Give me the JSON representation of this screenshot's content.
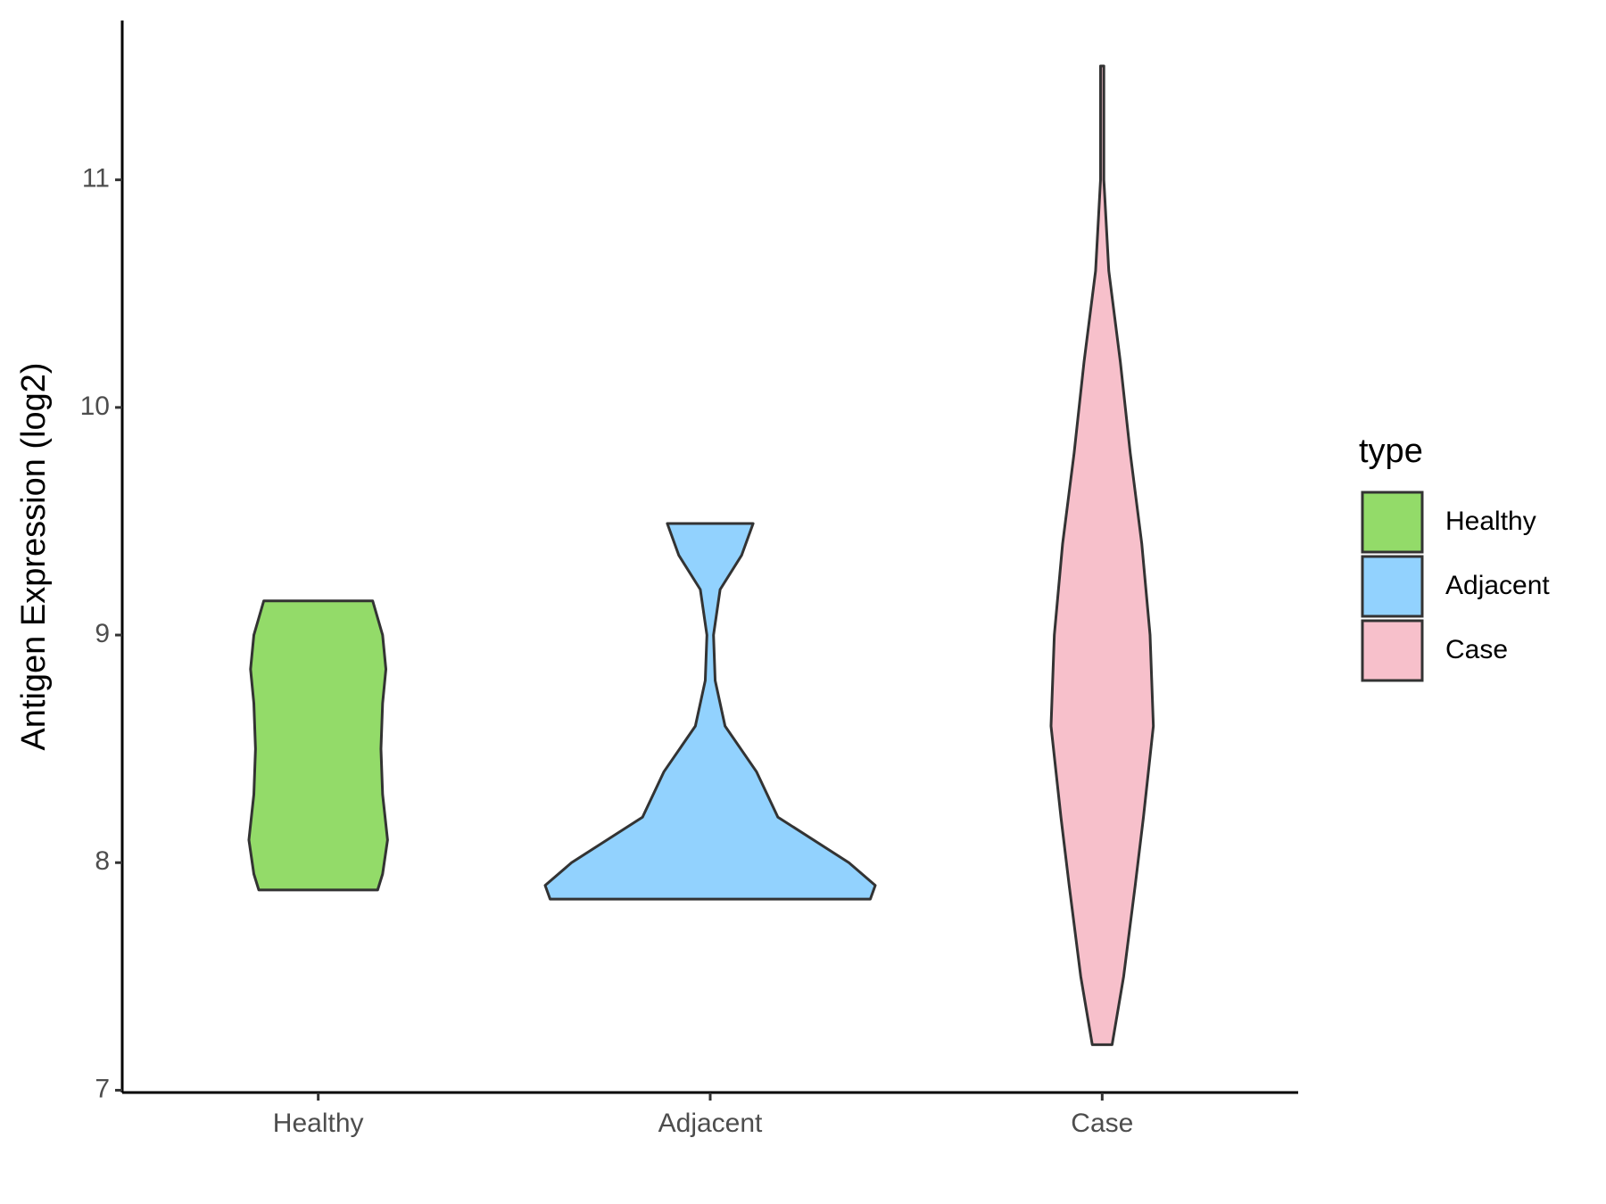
{
  "chart_data": {
    "type": "violin",
    "y_label": "Antigen Expression (log2)",
    "legend_title": "type",
    "categories": [
      "Healthy",
      "Adjacent",
      "Case"
    ],
    "ylim": [
      6.99,
      11.7
    ],
    "yticks": [
      7,
      8,
      9,
      10,
      11
    ],
    "series": [
      {
        "name": "Healthy",
        "color": "#93db69",
        "y": [
          7.88,
          7.95,
          8.1,
          8.3,
          8.5,
          8.7,
          8.85,
          9.0,
          9.15
        ],
        "density": [
          0.36,
          0.39,
          0.42,
          0.39,
          0.38,
          0.39,
          0.41,
          0.39,
          0.33
        ]
      },
      {
        "name": "Adjacent",
        "color": "#92d2fe",
        "y": [
          7.84,
          7.9,
          8.0,
          8.2,
          8.4,
          8.6,
          8.8,
          9.0,
          9.2,
          9.35,
          9.49
        ],
        "density": [
          0.97,
          1.0,
          0.84,
          0.41,
          0.28,
          0.09,
          0.03,
          0.02,
          0.06,
          0.19,
          0.26
        ]
      },
      {
        "name": "Case",
        "color": "#f7c0cb",
        "y": [
          7.2,
          7.5,
          7.9,
          8.2,
          8.6,
          9.0,
          9.4,
          9.8,
          10.2,
          10.6,
          11.0,
          11.5
        ],
        "density": [
          0.06,
          0.13,
          0.2,
          0.25,
          0.31,
          0.29,
          0.24,
          0.17,
          0.11,
          0.04,
          0.01,
          0.01
        ]
      }
    ]
  }
}
